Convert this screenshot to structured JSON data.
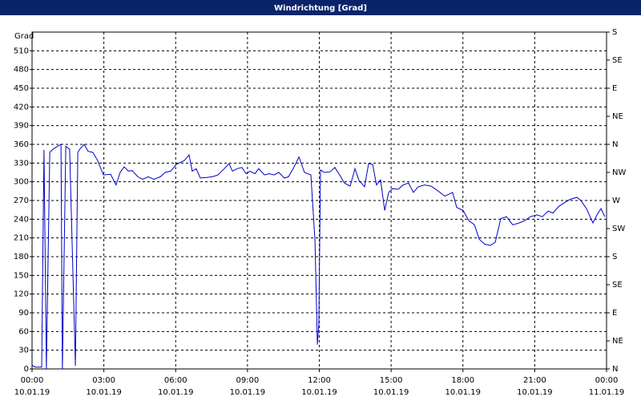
{
  "chart_data": {
    "type": "line",
    "title": "Windrichtung [Grad]",
    "ylabel": "Grad",
    "color": "#0000c8",
    "grid": true,
    "x": [
      0,
      0.13,
      0.33,
      0.4,
      0.5,
      0.6,
      0.74,
      0.87,
      1.07,
      1.21,
      1.27,
      1.41,
      1.57,
      1.81,
      1.91,
      2.01,
      2.18,
      2.34,
      2.54,
      2.74,
      2.98,
      3.28,
      3.51,
      3.68,
      3.85,
      4.02,
      4.18,
      4.42,
      4.62,
      4.85,
      5.09,
      5.36,
      5.56,
      5.79,
      6.03,
      6.36,
      6.56,
      6.69,
      6.86,
      7.03,
      7.3,
      7.53,
      7.77,
      8.03,
      8.23,
      8.37,
      8.57,
      8.77,
      8.94,
      9.1,
      9.31,
      9.47,
      9.71,
      9.91,
      10.11,
      10.31,
      10.54,
      10.71,
      10.91,
      11.15,
      11.38,
      11.65,
      11.82,
      11.92,
      11.98,
      12.05,
      12.22,
      12.45,
      12.65,
      12.85,
      13.05,
      13.29,
      13.49,
      13.66,
      13.89,
      14.06,
      14.23,
      14.39,
      14.56,
      14.73,
      14.9,
      15.06,
      15.3,
      15.5,
      15.73,
      15.93,
      16.13,
      16.4,
      16.67,
      16.97,
      17.24,
      17.57,
      17.74,
      18.01,
      18.24,
      18.48,
      18.68,
      18.91,
      19.15,
      19.35,
      19.58,
      19.82,
      20.08,
      20.35,
      20.59,
      20.82,
      21.09,
      21.32,
      21.56,
      21.76,
      21.99,
      22.26,
      22.49,
      22.76,
      22.93,
      23.16,
      23.43,
      23.6,
      23.77,
      23.93
    ],
    "values": [
      6,
      3,
      3,
      3,
      351,
      0,
      347,
      352,
      357,
      360,
      0,
      357,
      352,
      5,
      347,
      353,
      360,
      349,
      347,
      334,
      311,
      312,
      295,
      315,
      324,
      317,
      318,
      308,
      304,
      308,
      304,
      308,
      315,
      317,
      328,
      334,
      343,
      317,
      321,
      306,
      307,
      308,
      311,
      321,
      329,
      317,
      321,
      323,
      313,
      317,
      313,
      321,
      311,
      313,
      311,
      315,
      306,
      308,
      321,
      340,
      315,
      311,
      206,
      39,
      71,
      319,
      315,
      316,
      323,
      311,
      298,
      293,
      321,
      302,
      292,
      329,
      328,
      295,
      303,
      254,
      283,
      289,
      288,
      295,
      298,
      283,
      292,
      295,
      293,
      285,
      277,
      283,
      259,
      254,
      238,
      231,
      208,
      200,
      198,
      203,
      241,
      244,
      231,
      234,
      238,
      244,
      247,
      244,
      253,
      250,
      260,
      267,
      272,
      275,
      270,
      257,
      234,
      247,
      257,
      244
    ],
    "xlim": [
      0,
      24
    ],
    "xticks": [
      {
        "value": 0,
        "label": "00:00",
        "date": "10.01.19"
      },
      {
        "value": 3,
        "label": "03:00",
        "date": "10.01.19"
      },
      {
        "value": 6,
        "label": "06:00",
        "date": "10.01.19"
      },
      {
        "value": 9,
        "label": "09:00",
        "date": "10.01.19"
      },
      {
        "value": 12,
        "label": "12:00",
        "date": "10.01.19"
      },
      {
        "value": 15,
        "label": "15:00",
        "date": "10.01.19"
      },
      {
        "value": 18,
        "label": "18:00",
        "date": "10.01.19"
      },
      {
        "value": 21,
        "label": "21:00",
        "date": "10.01.19"
      },
      {
        "value": 24,
        "label": "00:00",
        "date": "11.01.19"
      }
    ],
    "ylim": [
      0,
      540
    ],
    "yticks": [
      0,
      30,
      60,
      90,
      120,
      150,
      180,
      210,
      240,
      270,
      300,
      330,
      360,
      390,
      420,
      450,
      480,
      510
    ],
    "y2lim": [
      0,
      540
    ],
    "y2ticks": [
      {
        "value": 0,
        "label": "N"
      },
      {
        "value": 45,
        "label": "NE"
      },
      {
        "value": 90,
        "label": "E"
      },
      {
        "value": 135,
        "label": "SE"
      },
      {
        "value": 180,
        "label": "S"
      },
      {
        "value": 225,
        "label": "SW"
      },
      {
        "value": 270,
        "label": "W"
      },
      {
        "value": 315,
        "label": "NW"
      },
      {
        "value": 360,
        "label": "N"
      },
      {
        "value": 405,
        "label": "NE"
      },
      {
        "value": 450,
        "label": "E"
      },
      {
        "value": 495,
        "label": "SE"
      },
      {
        "value": 540,
        "label": "S"
      }
    ]
  }
}
